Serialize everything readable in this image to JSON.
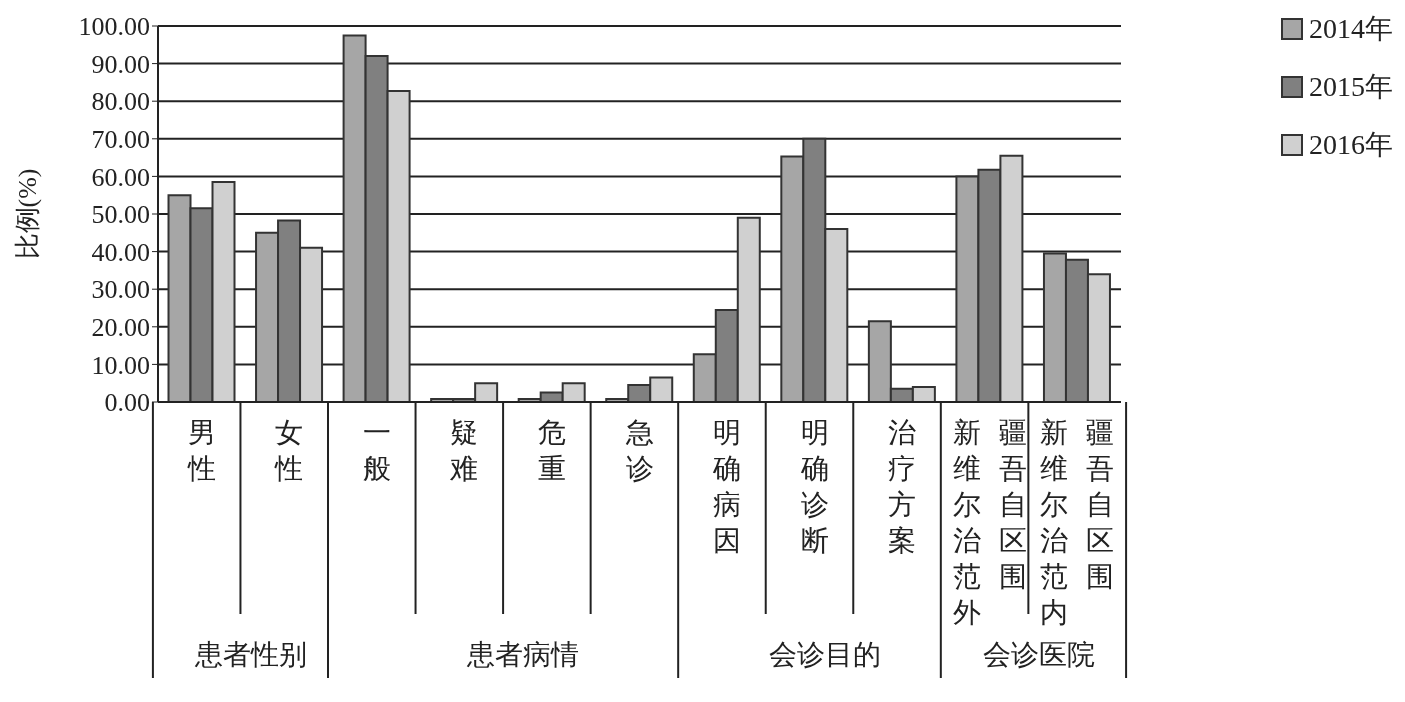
{
  "chart_data": {
    "type": "bar",
    "ylabel": "比例(%)",
    "categories": [
      "男性",
      "女性",
      "一般",
      "疑难",
      "危重",
      "急诊",
      "明确病因",
      "明确诊断",
      "治疗方案",
      "新疆维吾尔自治区范围外",
      "新疆维吾尔自治区范围内"
    ],
    "series": [
      {
        "name": "2014年",
        "color": "#a6a6a6",
        "values": [
          55,
          45,
          97.5,
          0.8,
          0.8,
          0.8,
          12.7,
          65.3,
          21.5,
          60,
          39.5
        ]
      },
      {
        "name": "2015年",
        "color": "#808080",
        "values": [
          51.5,
          48.3,
          92,
          0.8,
          2.5,
          4.5,
          24.5,
          70,
          3.5,
          61.8,
          37.8
        ]
      },
      {
        "name": "2016年",
        "color": "#d0d0d0",
        "values": [
          58.5,
          41,
          82.7,
          5,
          5,
          6.5,
          49,
          46,
          4,
          65.5,
          34
        ]
      }
    ],
    "ylim": [
      0,
      100
    ],
    "yticks": [
      {
        "value": 0,
        "label": "0.00"
      },
      {
        "value": 10,
        "label": "10.00"
      },
      {
        "value": 20,
        "label": "20.00"
      },
      {
        "value": 30,
        "label": "30.00"
      },
      {
        "value": 40,
        "label": "40.00"
      },
      {
        "value": 50,
        "label": "50.00"
      },
      {
        "value": 60,
        "label": "60.00"
      },
      {
        "value": 70,
        "label": "70.00"
      },
      {
        "value": 80,
        "label": "80.00"
      },
      {
        "value": 90,
        "label": "90.00"
      },
      {
        "value": 100,
        "label": "100.00"
      }
    ],
    "grid": "y",
    "legend": "top right",
    "annotations": [
      "患者性别",
      "患者病情",
      "会诊目的",
      "会诊医院"
    ]
  }
}
